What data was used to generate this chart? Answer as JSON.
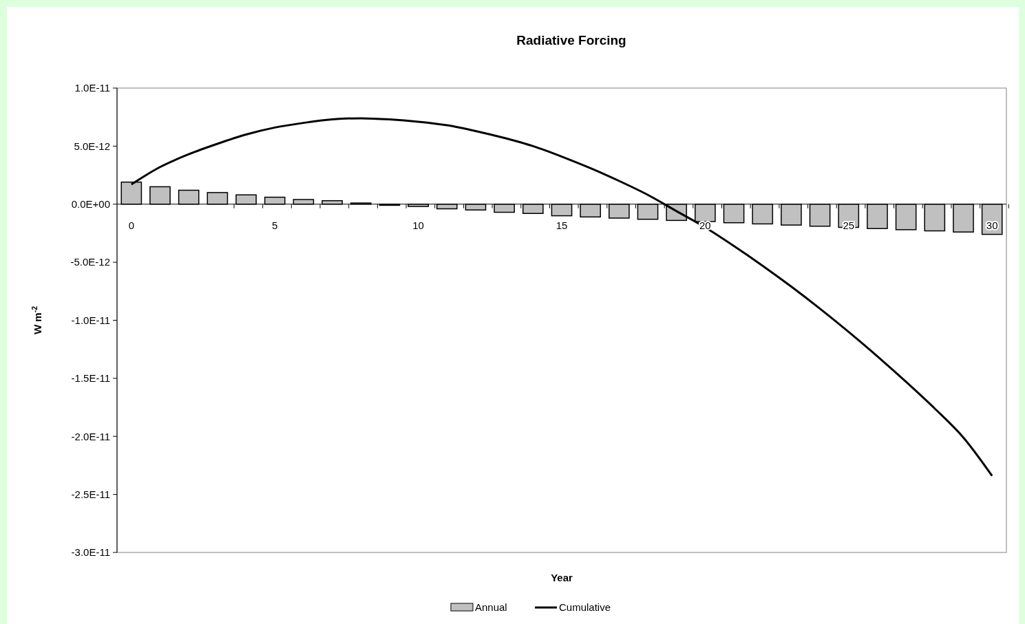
{
  "chart_data": {
    "type": "bar",
    "title": "Radiative Forcing",
    "xlabel": "Year",
    "ylabel": "W m$^{-2}$",
    "categories": [
      "0",
      null,
      null,
      null,
      null,
      "5",
      null,
      null,
      null,
      null,
      "10",
      null,
      null,
      null,
      null,
      "15",
      null,
      null,
      null,
      null,
      "20",
      null,
      null,
      null,
      null,
      "25",
      null,
      null,
      null,
      null,
      "30"
    ],
    "series": [
      {
        "name": "Annual",
        "color": "#c0c0c0",
        "values": [
          1.9e-12,
          1.5e-12,
          1.2e-12,
          1e-12,
          8e-13,
          6e-13,
          4e-13,
          3e-13,
          1e-13,
          -1e-13,
          -2e-13,
          -4e-13,
          -5e-13,
          -7e-13,
          -8e-13,
          -1e-12,
          -1.1e-12,
          -1.2e-12,
          -1.3e-12,
          -1.4e-12,
          -1.5e-12,
          -1.6e-12,
          -1.7e-12,
          -1.8e-12,
          -1.9e-12,
          -2e-12,
          -2.1e-12,
          -2.2e-12,
          -2.3e-12,
          -2.4e-12,
          -2.6e-12
        ]
      },
      {
        "name": "Cumulative",
        "type": "line",
        "color": "#000000",
        "values": [
          1.7e-12,
          3.2e-12,
          4.3e-12,
          5.2e-12,
          6e-12,
          6.6e-12,
          7e-12,
          7.3e-12,
          7.4e-12,
          7.3e-12,
          7.1e-12,
          6.8e-12,
          6.3e-12,
          5.7e-12,
          5e-12,
          4.1e-12,
          3.1e-12,
          2e-12,
          8e-13,
          -6e-13,
          -2e-12,
          -3.6e-12,
          -5.3e-12,
          -7.1e-12,
          -9e-12,
          -1.1e-11,
          -1.31e-11,
          -1.53e-11,
          -1.76e-11,
          -2.01e-11,
          -2.34e-11
        ]
      }
    ],
    "ylim": [
      -3e-11,
      1e-11
    ],
    "yticks": [
      {
        "value": -3e-11,
        "label": "-3.0E-11"
      },
      {
        "value": -2.5e-11,
        "label": "-2.5E-11"
      },
      {
        "value": -2e-11,
        "label": "-2.0E-11"
      },
      {
        "value": -1.5e-11,
        "label": "-1.5E-11"
      },
      {
        "value": -1e-11,
        "label": "-1.0E-11"
      },
      {
        "value": -5e-12,
        "label": "-5.0E-12"
      },
      {
        "value": 0,
        "label": "0.0E+00"
      },
      {
        "value": 5e-12,
        "label": "5.0E-12"
      },
      {
        "value": 1e-11,
        "label": "1.0E-11"
      }
    ],
    "grid": false,
    "legend": "bottom",
    "marker": "none",
    "line_style": "solid"
  }
}
